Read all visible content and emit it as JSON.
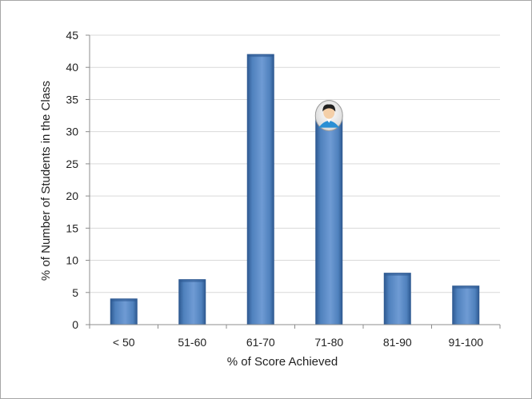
{
  "chart_data": {
    "type": "bar",
    "title": "",
    "xlabel": "% of Score Achieved",
    "ylabel": "% of Number of Students in the Class",
    "categories": [
      "< 50",
      "51-60",
      "61-70",
      "71-80",
      "81-90",
      "91-100"
    ],
    "values": [
      4,
      7,
      42,
      32,
      8,
      6
    ],
    "ylim": [
      0,
      45
    ],
    "yticks": [
      0,
      5,
      10,
      15,
      20,
      25,
      30,
      35,
      40,
      45
    ],
    "grid": true,
    "legend": "none",
    "colors": {
      "bar": "#4f81bd",
      "bar_light": "#7ba3d8",
      "bar_dark": "#2f5a92",
      "grid": "#d9d9d9",
      "axis": "#8c8c8c"
    },
    "annotation": {
      "icon": "student-avatar-icon",
      "category": "71-80"
    }
  }
}
